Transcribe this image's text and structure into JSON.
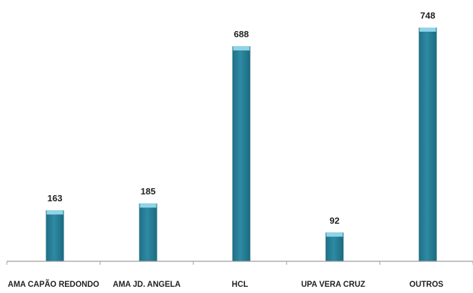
{
  "chart_data": {
    "type": "bar",
    "categories": [
      "AMA CAPÃO REDONDO",
      "AMA JD. ANGELA",
      "HCL",
      "UPA VERA CRUZ",
      "OUTROS"
    ],
    "values": [
      163,
      185,
      688,
      92,
      748
    ],
    "data_labels": [
      "163",
      "185",
      "688",
      "92",
      "748"
    ],
    "title": "",
    "xlabel": "",
    "ylabel": "",
    "ylim": [
      0,
      748
    ],
    "grid": false,
    "legend": "none",
    "bar_color": "#2e8aa3",
    "bar_highlight": "#8fd4e8",
    "axis_color": "#9a9a9a"
  }
}
